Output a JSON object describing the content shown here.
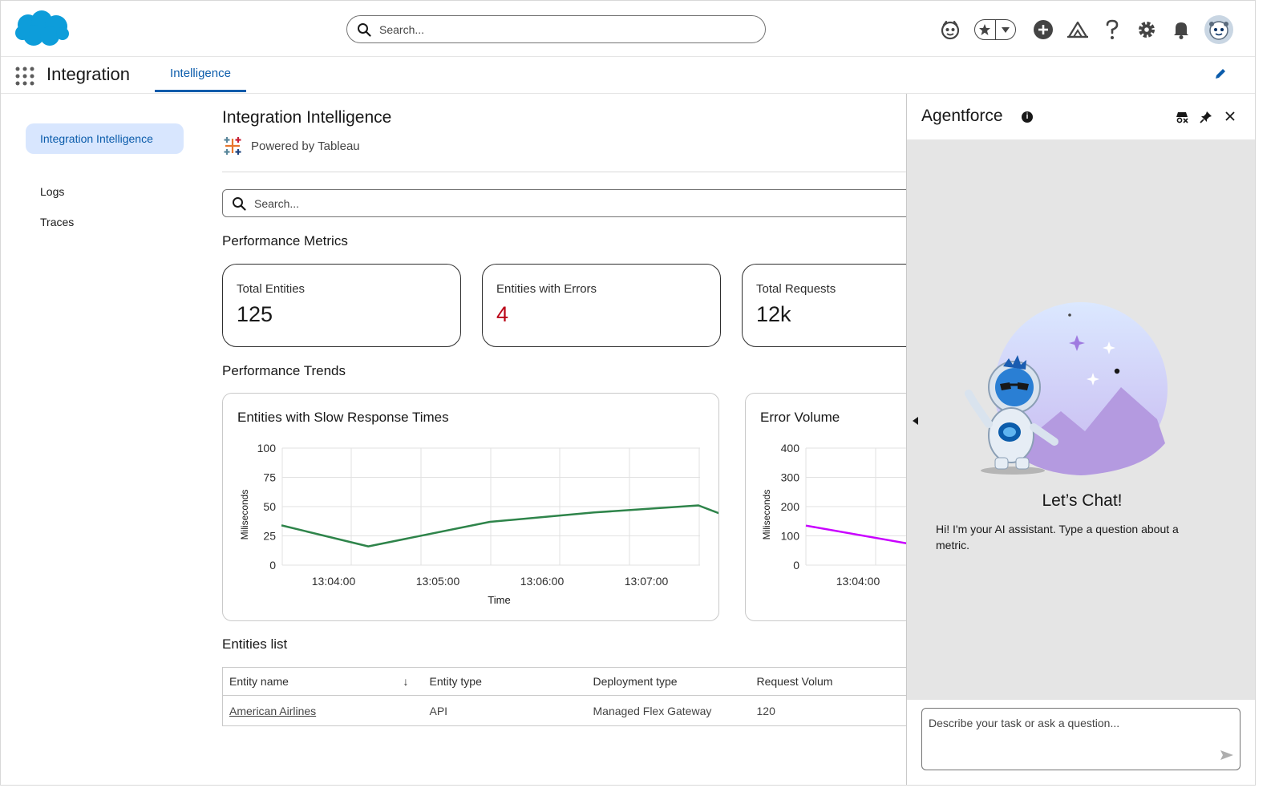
{
  "header": {
    "search_placeholder": "Search...",
    "icons": [
      "einstein-icon",
      "favorites-star-icon",
      "favorites-dropdown-icon",
      "add-icon",
      "trailhead-icon",
      "help-icon",
      "setup-gear-icon",
      "notifications-bell-icon",
      "avatar"
    ]
  },
  "nav": {
    "app_name": "Integration",
    "tab": "Intelligence"
  },
  "sidebar": {
    "items": [
      {
        "label": "Integration Intelligence",
        "active": true
      },
      {
        "label": "Logs"
      },
      {
        "label": "Traces"
      }
    ]
  },
  "main": {
    "title": "Integration Intelligence",
    "powered_by": "Powered by Tableau",
    "search_placeholder": "Search...",
    "metrics_heading": "Performance Metrics",
    "metrics": [
      {
        "label": "Total Entities",
        "value": "125"
      },
      {
        "label": "Entities with Errors",
        "value": "4"
      },
      {
        "label": "Total Requests",
        "value": "12k"
      }
    ],
    "trends_heading": "Performance Trends",
    "list_heading": "Entities list",
    "table": {
      "columns": [
        "Entity name",
        "Entity type",
        "Deployment type",
        "Request Volum"
      ],
      "rows": [
        [
          "American Airlines",
          "API",
          "Managed Flex Gateway",
          "120"
        ]
      ]
    }
  },
  "chart_data": [
    {
      "type": "line",
      "title": "Entities with Slow Response Times",
      "xlabel": "Time",
      "ylabel": "Miliseconds",
      "ylim": [
        0,
        100
      ],
      "yticks": [
        "100",
        "75",
        "50",
        "25",
        "0"
      ],
      "xticks": [
        "13:04:00",
        "13:05:00",
        "13:06:00",
        "13:07:00"
      ],
      "grid": true,
      "color": "#2e844a",
      "series": [
        {
          "x": [
            "13:03:30",
            "13:04:20",
            "13:05:30",
            "13:06:30",
            "13:07:30",
            "13:08:00"
          ],
          "values": [
            34,
            16,
            37,
            45,
            51,
            34
          ]
        }
      ]
    },
    {
      "type": "line",
      "title": "Error Volume",
      "ylabel": "Miliseconds",
      "ylim": [
        0,
        400
      ],
      "yticks": [
        "400",
        "300",
        "200",
        "100",
        "0"
      ],
      "xticks": [
        "13:04:00"
      ],
      "grid": true,
      "color": "#c900ff",
      "series": [
        {
          "x": [
            "13:03:30",
            "13:04:40"
          ],
          "values": [
            135,
            62
          ]
        }
      ]
    }
  ],
  "agent": {
    "title": "Agentforce",
    "info_glyph": "i",
    "chat_title": "Let’s Chat!",
    "chat_sub": "Hi! I'm your AI assistant. Type a question about a metric.",
    "input_placeholder": "Describe your task or ask a question..."
  },
  "colors": {
    "brand": "#0b5cab",
    "active_bg": "#d8e6fe",
    "error": "#ba0517",
    "logo": "#0d9dda"
  }
}
